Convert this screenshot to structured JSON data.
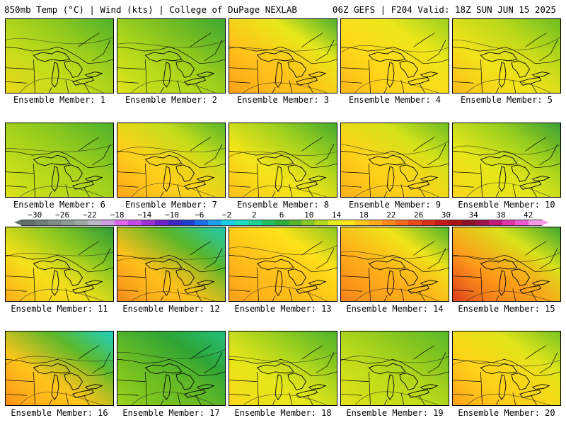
{
  "header": {
    "left": "850mb Temp (°C) | Wind (kts) | College of DuPage NEXLAB",
    "right": "06Z GEFS | F204 Valid: 18Z SUN JUN 15 2025"
  },
  "colorbar": {
    "tick_labels": [
      "−30",
      "−26",
      "−22",
      "−18",
      "−14",
      "−10",
      "−6",
      "−2",
      "2",
      "6",
      "10",
      "14",
      "18",
      "22",
      "26",
      "30",
      "34",
      "38",
      "42"
    ],
    "tick_values": [
      -30,
      -26,
      -22,
      -18,
      -14,
      -10,
      -6,
      -2,
      2,
      6,
      10,
      14,
      18,
      22,
      26,
      30,
      34,
      38,
      42
    ],
    "min": -32,
    "max": 44,
    "colors": [
      "#5f6f6a",
      "#6e7d77",
      "#7e8c85",
      "#8e9b94",
      "#a0aaa5",
      "#b9b9c8",
      "#cf9fe6",
      "#e066ee",
      "#c44ae6",
      "#9a2fd6",
      "#6c22c8",
      "#3b27c2",
      "#1d3fd0",
      "#1a6ee6",
      "#1aa0ee",
      "#1ccde6",
      "#1ee0c0",
      "#20d090",
      "#22be62",
      "#2cae3a",
      "#55b62a",
      "#86c620",
      "#b6d81a",
      "#e4ec1a",
      "#ffe61a",
      "#ffc81a",
      "#ffaa1a",
      "#ff8a1a",
      "#f56a1a",
      "#e84a1a",
      "#d8301a",
      "#c41a1a",
      "#a81414",
      "#8e1226",
      "#a0124c",
      "#c01a7a",
      "#e036a8",
      "#f05ad0",
      "#f898e8"
    ]
  },
  "panels": [
    {
      "label": "Ensemble Member: 1",
      "colors": [
        "#f2d41a",
        "#c4dc1a",
        "#8ec81e",
        "#4eb22c"
      ]
    },
    {
      "label": "Ensemble Member: 2",
      "colors": [
        "#e9e41a",
        "#b3d91a",
        "#77bd22",
        "#3ea730"
      ]
    },
    {
      "label": "Ensemble Member: 3",
      "colors": [
        "#ff9a1a",
        "#ffc21a",
        "#e8e81a",
        "#4bb02c"
      ]
    },
    {
      "label": "Ensemble Member: 4",
      "colors": [
        "#ffb01a",
        "#ffd81a",
        "#ece61a",
        "#9ad01e"
      ]
    },
    {
      "label": "Ensemble Member: 5",
      "colors": [
        "#ffb41a",
        "#f2e21a",
        "#b8d81a",
        "#6cbd22"
      ]
    },
    {
      "label": "Ensemble Member: 6",
      "colors": [
        "#e4e41a",
        "#b6d81a",
        "#86c620",
        "#4db02c"
      ]
    },
    {
      "label": "Ensemble Member: 7",
      "colors": [
        "#ff9e1a",
        "#ffd01a",
        "#c4dc1a",
        "#58b62a"
      ]
    },
    {
      "label": "Ensemble Member: 8",
      "colors": [
        "#ffb81a",
        "#f4e41a",
        "#9ed01e",
        "#45ab2e"
      ]
    },
    {
      "label": "Ensemble Member: 9",
      "colors": [
        "#ffa81a",
        "#ffd21a",
        "#d4e21a",
        "#6ebe22"
      ]
    },
    {
      "label": "Ensemble Member: 10",
      "colors": [
        "#ffd21a",
        "#e6e61a",
        "#98ce1e",
        "#3a9e34"
      ]
    },
    {
      "label": "Ensemble Member: 11",
      "colors": [
        "#ffa41a",
        "#f4e01a",
        "#86c620",
        "#2e9a38"
      ]
    },
    {
      "label": "Ensemble Member: 12",
      "colors": [
        "#f5801a",
        "#ffc01a",
        "#58b62a",
        "#20c8b0"
      ]
    },
    {
      "label": "Ensemble Member: 13",
      "colors": [
        "#ff9a1a",
        "#ffbe1a",
        "#ffe21a",
        "#8ec81e"
      ]
    },
    {
      "label": "Ensemble Member: 14",
      "colors": [
        "#f77a1a",
        "#ffac1a",
        "#f0e41a",
        "#4eb22c"
      ]
    },
    {
      "label": "Ensemble Member: 15",
      "colors": [
        "#d8301a",
        "#ff9a1a",
        "#d8e21a",
        "#3ea730"
      ]
    },
    {
      "label": "Ensemble Member: 16",
      "colors": [
        "#ff8a1a",
        "#ffc41a",
        "#5cb82a",
        "#1ecfc0"
      ]
    },
    {
      "label": "Ensemble Member: 17",
      "colors": [
        "#a8d61a",
        "#6cbd22",
        "#2fa536",
        "#22be7a"
      ]
    },
    {
      "label": "Ensemble Member: 18",
      "colors": [
        "#ffd41a",
        "#e6e61a",
        "#98ce1e",
        "#4eb22c"
      ]
    },
    {
      "label": "Ensemble Member: 19",
      "colors": [
        "#eae41a",
        "#c2dc1a",
        "#8cc81e",
        "#5ab82a"
      ]
    },
    {
      "label": "Ensemble Member: 20",
      "colors": [
        "#ff9a1a",
        "#ffd21a",
        "#e0e41a",
        "#7ac422"
      ]
    }
  ]
}
